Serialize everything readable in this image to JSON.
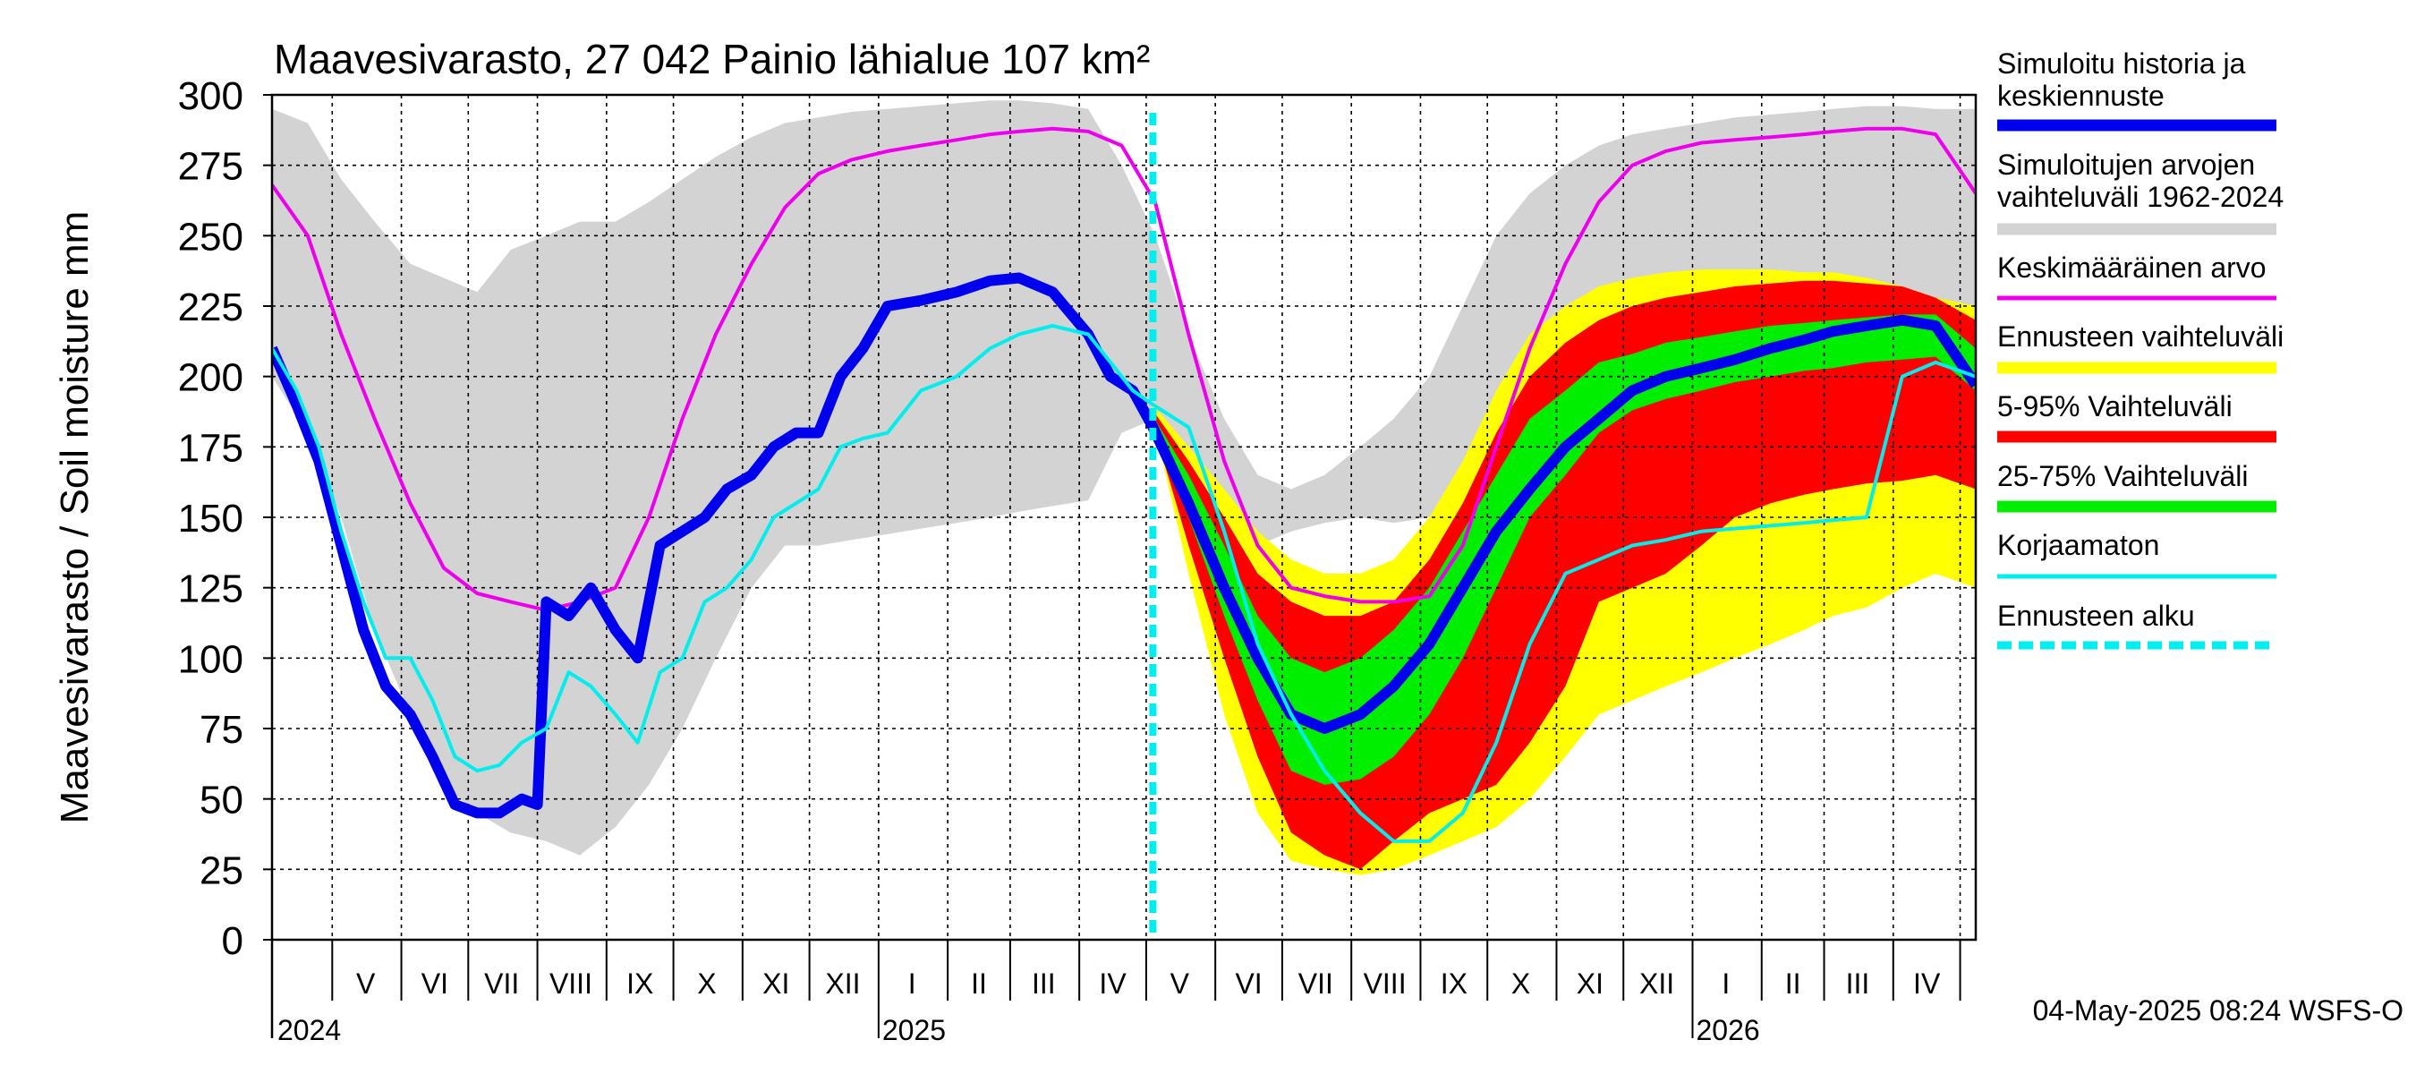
{
  "chart_data": {
    "type": "area",
    "title": "Maavesivarasto, 27 042 Painio lähialue 107 km²",
    "ylabel": "Maavesivarasto / Soil moisture   mm",
    "xlabel": "",
    "ylim": [
      0,
      300
    ],
    "yticks": [
      0,
      25,
      50,
      75,
      100,
      125,
      150,
      175,
      200,
      225,
      250,
      275,
      300
    ],
    "x_range": [
      "2024-04-04",
      "2026-05-08"
    ],
    "forecast_start": "2025-05-04",
    "grid": true,
    "legend_position": "right",
    "month_labels": [
      {
        "label": "V",
        "date": "2024-05-16"
      },
      {
        "label": "VI",
        "date": "2024-06-16"
      },
      {
        "label": "VII",
        "date": "2024-07-16"
      },
      {
        "label": "VIII",
        "date": "2024-08-16"
      },
      {
        "label": "IX",
        "date": "2024-09-16"
      },
      {
        "label": "X",
        "date": "2024-10-16"
      },
      {
        "label": "XI",
        "date": "2024-11-16"
      },
      {
        "label": "XII",
        "date": "2024-12-16"
      },
      {
        "label": "I",
        "date": "2025-01-16"
      },
      {
        "label": "II",
        "date": "2025-02-15"
      },
      {
        "label": "III",
        "date": "2025-03-16"
      },
      {
        "label": "IV",
        "date": "2025-04-16"
      },
      {
        "label": "V",
        "date": "2025-05-16"
      },
      {
        "label": "VI",
        "date": "2025-06-16"
      },
      {
        "label": "VII",
        "date": "2025-07-16"
      },
      {
        "label": "VIII",
        "date": "2025-08-16"
      },
      {
        "label": "IX",
        "date": "2025-09-16"
      },
      {
        "label": "X",
        "date": "2025-10-16"
      },
      {
        "label": "XI",
        "date": "2025-11-16"
      },
      {
        "label": "XII",
        "date": "2025-12-16"
      },
      {
        "label": "I",
        "date": "2026-01-16"
      },
      {
        "label": "II",
        "date": "2026-02-15"
      },
      {
        "label": "III",
        "date": "2026-03-16"
      },
      {
        "label": "IV",
        "date": "2026-04-16"
      }
    ],
    "year_labels": [
      {
        "label": "2024",
        "date": "2024-04-04"
      },
      {
        "label": "2025",
        "date": "2025-01-01"
      },
      {
        "label": "2026",
        "date": "2026-01-01"
      }
    ],
    "legend": [
      {
        "label": "Simuloitu historia ja keskiennuste",
        "color": "#0000ee",
        "style": "thick"
      },
      {
        "label": "Simuloitujen arvojen vaihteluväli 1962-2024",
        "color": "#d3d3d3",
        "style": "thick"
      },
      {
        "label": "Keskimääräinen arvo",
        "color": "#ee00ee",
        "style": "thin"
      },
      {
        "label": "Ennusteen vaihteluväli",
        "color": "#ffff00",
        "style": "thick"
      },
      {
        "label": "5-95% Vaihteluväli",
        "color": "#ff0000",
        "style": "thick"
      },
      {
        "label": "25-75% Vaihteluväli",
        "color": "#00ee00",
        "style": "thick"
      },
      {
        "label": "Korjaamaton",
        "color": "#00eeee",
        "style": "thin"
      },
      {
        "label": "Ennusteen alku",
        "color": "#00eeee",
        "style": "dashed"
      }
    ],
    "colors": {
      "history_band": "#d3d3d3",
      "mean": "#ee00ee",
      "simulated": "#0000ee",
      "uncorrected": "#00eeee",
      "forecast_range": "#ffff00",
      "p5_95": "#ff0000",
      "p25_75": "#00ee00",
      "forecast_start": "#00eeee"
    },
    "series": [
      {
        "name": "Simuloitujen arvojen vaihteluväli 1962-2024",
        "kind": "band",
        "x": [
          "2024-04-04",
          "2024-04-20",
          "2024-05-05",
          "2024-05-20",
          "2024-06-05",
          "2024-06-20",
          "2024-07-05",
          "2024-07-20",
          "2024-08-05",
          "2024-08-20",
          "2024-09-05",
          "2024-09-20",
          "2024-10-05",
          "2024-10-20",
          "2024-11-05",
          "2024-11-20",
          "2024-12-05",
          "2024-12-20",
          "2025-01-05",
          "2025-01-20",
          "2025-02-05",
          "2025-02-20",
          "2025-03-05",
          "2025-03-20",
          "2025-04-05",
          "2025-04-20",
          "2025-05-05",
          "2025-05-20",
          "2025-06-05",
          "2025-06-20",
          "2025-07-05",
          "2025-07-20",
          "2025-08-05",
          "2025-08-20",
          "2025-09-05",
          "2025-09-20",
          "2025-10-05",
          "2025-10-20",
          "2025-11-05",
          "2025-11-20",
          "2025-12-05",
          "2025-12-20",
          "2026-01-05",
          "2026-01-20",
          "2026-02-05",
          "2026-02-20",
          "2026-03-05",
          "2026-03-20",
          "2026-04-05",
          "2026-04-20",
          "2026-05-08"
        ],
        "low": [
          200,
          180,
          150,
          110,
          80,
          55,
          45,
          38,
          35,
          30,
          40,
          55,
          75,
          100,
          125,
          140,
          140,
          142,
          144,
          146,
          148,
          150,
          152,
          154,
          156,
          180,
          185,
          170,
          150,
          140,
          145,
          148,
          150,
          148,
          150,
          152,
          155,
          160,
          170,
          180,
          190,
          195,
          200,
          205,
          208,
          210,
          212,
          214,
          215,
          208,
          200
        ],
        "high": [
          295,
          290,
          270,
          255,
          240,
          235,
          230,
          245,
          250,
          255,
          255,
          262,
          270,
          278,
          285,
          290,
          292,
          294,
          295,
          296,
          297,
          298,
          298,
          297,
          295,
          275,
          250,
          215,
          185,
          165,
          160,
          165,
          175,
          185,
          200,
          225,
          250,
          265,
          275,
          282,
          286,
          288,
          290,
          292,
          293,
          294,
          295,
          296,
          296,
          295,
          295
        ]
      },
      {
        "name": "Keskimääräinen arvo",
        "kind": "line",
        "x": [
          "2024-04-04",
          "2024-04-20",
          "2024-05-05",
          "2024-05-20",
          "2024-06-05",
          "2024-06-20",
          "2024-07-05",
          "2024-07-20",
          "2024-08-05",
          "2024-08-20",
          "2024-09-05",
          "2024-09-20",
          "2024-10-05",
          "2024-10-20",
          "2024-11-05",
          "2024-11-20",
          "2024-12-05",
          "2024-12-20",
          "2025-01-05",
          "2025-01-20",
          "2025-02-05",
          "2025-02-20",
          "2025-03-05",
          "2025-03-20",
          "2025-04-05",
          "2025-04-20",
          "2025-05-05",
          "2025-05-20",
          "2025-06-05",
          "2025-06-20",
          "2025-07-05",
          "2025-07-20",
          "2025-08-05",
          "2025-08-20",
          "2025-09-05",
          "2025-09-20",
          "2025-10-05",
          "2025-10-20",
          "2025-11-05",
          "2025-11-20",
          "2025-12-05",
          "2025-12-20",
          "2026-01-05",
          "2026-01-20",
          "2026-02-05",
          "2026-02-20",
          "2026-03-05",
          "2026-03-20",
          "2026-04-05",
          "2026-04-20",
          "2026-05-08"
        ],
        "values": [
          268,
          250,
          215,
          185,
          155,
          132,
          123,
          120,
          117,
          120,
          125,
          150,
          185,
          215,
          240,
          260,
          272,
          277,
          280,
          282,
          284,
          286,
          287,
          288,
          287,
          282,
          262,
          215,
          170,
          140,
          125,
          122,
          120,
          120,
          122,
          140,
          175,
          210,
          240,
          262,
          275,
          280,
          283,
          284,
          285,
          286,
          287,
          288,
          288,
          286,
          265
        ]
      },
      {
        "name": "Ennusteen vaihteluväli",
        "kind": "band",
        "x": [
          "2025-05-04",
          "2025-05-20",
          "2025-06-05",
          "2025-06-20",
          "2025-07-05",
          "2025-07-20",
          "2025-08-05",
          "2025-08-20",
          "2025-09-05",
          "2025-09-20",
          "2025-10-05",
          "2025-10-20",
          "2025-11-05",
          "2025-11-20",
          "2025-12-05",
          "2025-12-20",
          "2026-01-05",
          "2026-01-20",
          "2026-02-05",
          "2026-02-20",
          "2026-03-05",
          "2026-03-20",
          "2026-04-05",
          "2026-04-20",
          "2026-05-08"
        ],
        "low": [
          185,
          130,
          80,
          45,
          28,
          25,
          23,
          25,
          30,
          35,
          40,
          50,
          65,
          80,
          85,
          90,
          95,
          100,
          105,
          110,
          115,
          118,
          125,
          130,
          125
        ],
        "high": [
          190,
          175,
          160,
          145,
          135,
          130,
          130,
          135,
          150,
          170,
          195,
          215,
          225,
          232,
          235,
          237,
          238,
          238,
          238,
          237,
          237,
          235,
          232,
          228,
          225
        ]
      },
      {
        "name": "5-95% Vaihteluväli",
        "kind": "band",
        "x": [
          "2025-05-04",
          "2025-05-20",
          "2025-06-05",
          "2025-06-20",
          "2025-07-05",
          "2025-07-20",
          "2025-08-05",
          "2025-08-20",
          "2025-09-05",
          "2025-09-20",
          "2025-10-05",
          "2025-10-20",
          "2025-11-05",
          "2025-11-20",
          "2025-12-05",
          "2025-12-20",
          "2026-01-05",
          "2026-01-20",
          "2026-02-05",
          "2026-02-20",
          "2026-03-05",
          "2026-03-20",
          "2026-04-05",
          "2026-04-20",
          "2026-05-08"
        ],
        "low": [
          183,
          140,
          100,
          65,
          38,
          30,
          25,
          35,
          45,
          50,
          55,
          70,
          90,
          120,
          125,
          130,
          140,
          150,
          155,
          158,
          160,
          162,
          163,
          165,
          160
        ],
        "high": [
          188,
          170,
          150,
          130,
          120,
          115,
          115,
          120,
          135,
          155,
          180,
          200,
          212,
          220,
          225,
          228,
          230,
          232,
          233,
          234,
          234,
          233,
          232,
          228,
          220
        ]
      },
      {
        "name": "25-75% Vaihteluväli",
        "kind": "band",
        "x": [
          "2025-05-04",
          "2025-05-20",
          "2025-06-05",
          "2025-06-20",
          "2025-07-05",
          "2025-07-20",
          "2025-08-05",
          "2025-08-20",
          "2025-09-05",
          "2025-09-20",
          "2025-10-05",
          "2025-10-20",
          "2025-11-05",
          "2025-11-20",
          "2025-12-05",
          "2025-12-20",
          "2026-01-05",
          "2026-01-20",
          "2026-02-05",
          "2026-02-20",
          "2026-03-05",
          "2026-03-20",
          "2026-04-05",
          "2026-04-20",
          "2026-05-08"
        ],
        "low": [
          182,
          150,
          115,
          85,
          60,
          55,
          57,
          65,
          80,
          100,
          125,
          150,
          165,
          180,
          188,
          192,
          195,
          198,
          200,
          202,
          203,
          205,
          206,
          207,
          195
        ],
        "high": [
          186,
          165,
          140,
          115,
          100,
          95,
          100,
          110,
          125,
          145,
          165,
          185,
          195,
          205,
          208,
          212,
          214,
          216,
          218,
          219,
          220,
          221,
          222,
          222,
          210
        ]
      },
      {
        "name": "Simuloitu historia ja keskiennuste",
        "kind": "line",
        "x": [
          "2024-04-04",
          "2024-04-15",
          "2024-04-25",
          "2024-05-05",
          "2024-05-15",
          "2024-05-25",
          "2024-06-05",
          "2024-06-15",
          "2024-06-25",
          "2024-07-05",
          "2024-07-15",
          "2024-07-25",
          "2024-08-01",
          "2024-08-05",
          "2024-08-15",
          "2024-08-25",
          "2024-09-05",
          "2024-09-15",
          "2024-09-25",
          "2024-10-05",
          "2024-10-15",
          "2024-10-25",
          "2024-11-05",
          "2024-11-15",
          "2024-11-25",
          "2024-12-05",
          "2024-12-15",
          "2024-12-25",
          "2025-01-05",
          "2025-01-20",
          "2025-02-05",
          "2025-02-20",
          "2025-03-05",
          "2025-03-20",
          "2025-04-05",
          "2025-04-15",
          "2025-04-25",
          "2025-05-04",
          "2025-05-20",
          "2025-06-05",
          "2025-06-20",
          "2025-07-05",
          "2025-07-20",
          "2025-08-05",
          "2025-08-20",
          "2025-09-05",
          "2025-09-20",
          "2025-10-05",
          "2025-10-20",
          "2025-11-05",
          "2025-11-20",
          "2025-12-05",
          "2025-12-20",
          "2026-01-05",
          "2026-01-20",
          "2026-02-05",
          "2026-02-20",
          "2026-03-05",
          "2026-03-20",
          "2026-04-05",
          "2026-04-20",
          "2026-05-08"
        ],
        "values": [
          210,
          190,
          170,
          140,
          110,
          90,
          80,
          65,
          48,
          45,
          45,
          50,
          48,
          120,
          115,
          125,
          110,
          100,
          140,
          145,
          150,
          160,
          165,
          175,
          180,
          180,
          200,
          210,
          225,
          227,
          230,
          234,
          235,
          230,
          215,
          200,
          195,
          182,
          155,
          125,
          100,
          80,
          75,
          80,
          90,
          105,
          125,
          145,
          160,
          175,
          185,
          195,
          200,
          203,
          206,
          210,
          213,
          216,
          218,
          220,
          218,
          197
        ]
      },
      {
        "name": "Korjaamaton",
        "kind": "line",
        "x": [
          "2024-04-04",
          "2024-04-15",
          "2024-04-25",
          "2024-05-05",
          "2024-05-15",
          "2024-05-25",
          "2024-06-05",
          "2024-06-15",
          "2024-06-25",
          "2024-07-05",
          "2024-07-15",
          "2024-07-25",
          "2024-08-05",
          "2024-08-15",
          "2024-08-25",
          "2024-09-05",
          "2024-09-15",
          "2024-09-25",
          "2024-10-05",
          "2024-10-15",
          "2024-10-25",
          "2024-11-05",
          "2024-11-15",
          "2024-11-25",
          "2024-12-05",
          "2024-12-15",
          "2024-12-25",
          "2025-01-05",
          "2025-01-20",
          "2025-02-05",
          "2025-02-20",
          "2025-03-05",
          "2025-03-20",
          "2025-04-05",
          "2025-04-15",
          "2025-04-25",
          "2025-05-04",
          "2025-05-20",
          "2025-06-05",
          "2025-06-20",
          "2025-07-05",
          "2025-07-20",
          "2025-08-05",
          "2025-08-20",
          "2025-09-05",
          "2025-09-20",
          "2025-10-05",
          "2025-10-20",
          "2025-11-05",
          "2025-11-20",
          "2025-12-05",
          "2025-12-20",
          "2026-01-05",
          "2026-01-20",
          "2026-02-05",
          "2026-02-20",
          "2026-03-05",
          "2026-03-20",
          "2026-04-05",
          "2026-04-20",
          "2026-05-08"
        ],
        "values": [
          210,
          195,
          175,
          145,
          120,
          100,
          100,
          85,
          65,
          60,
          62,
          70,
          75,
          95,
          90,
          80,
          70,
          95,
          100,
          120,
          125,
          135,
          150,
          155,
          160,
          175,
          178,
          180,
          195,
          200,
          210,
          215,
          218,
          215,
          205,
          195,
          190,
          182,
          145,
          105,
          80,
          60,
          45,
          35,
          35,
          45,
          70,
          105,
          130,
          135,
          140,
          142,
          145,
          146,
          147,
          148,
          149,
          150,
          200,
          205,
          200
        ]
      }
    ],
    "footer": "04-May-2025 08:24 WSFS-O"
  }
}
